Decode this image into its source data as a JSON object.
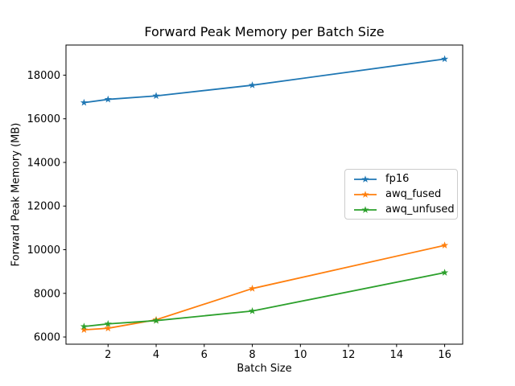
{
  "figure": {
    "background": "#ffffff",
    "axes_background": "#ffffff",
    "spine_color": "#000000",
    "text_color": "#000000"
  },
  "chart_data": {
    "type": "line",
    "title": "Forward Peak Memory per Batch Size",
    "xlabel": "Batch Size",
    "ylabel": "Forward Peak Memory (MB)",
    "x": [
      1,
      2,
      4,
      8,
      16
    ],
    "series": [
      {
        "name": "fp16",
        "color": "#1f77b4",
        "marker": "star",
        "values": [
          16740,
          16890,
          17050,
          17540,
          18740
        ]
      },
      {
        "name": "awq_fused",
        "color": "#ff7f0e",
        "marker": "star",
        "values": [
          6330,
          6400,
          6790,
          8220,
          10200
        ]
      },
      {
        "name": "awq_unfused",
        "color": "#2ca02c",
        "marker": "star",
        "values": [
          6480,
          6600,
          6750,
          7190,
          8950
        ]
      }
    ],
    "xlim": [
      0.25,
      16.75
    ],
    "ylim": [
      5670,
      19380
    ],
    "xticks": [
      2,
      4,
      6,
      8,
      10,
      12,
      14,
      16
    ],
    "yticks": [
      6000,
      8000,
      10000,
      12000,
      14000,
      16000,
      18000
    ],
    "grid": false,
    "legend_position": "center right"
  }
}
